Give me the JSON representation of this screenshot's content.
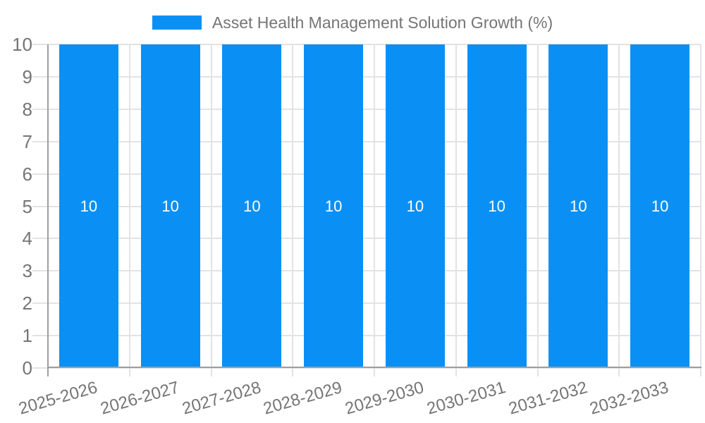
{
  "chart_data": {
    "type": "bar",
    "title": "",
    "legend": {
      "label": "Asset Health Management Solution Growth (%)",
      "position": "top"
    },
    "categories": [
      "2025-2026",
      "2026-2027",
      "2027-2028",
      "2028-2029",
      "2029-2030",
      "2030-2031",
      "2031-2032",
      "2032-2033"
    ],
    "series": [
      {
        "name": "Asset Health Management Solution Growth (%)",
        "values": [
          10,
          10,
          10,
          10,
          10,
          10,
          10,
          10
        ],
        "color": "#0a90f5"
      }
    ],
    "value_labels": [
      "10",
      "10",
      "10",
      "10",
      "10",
      "10",
      "10",
      "10"
    ],
    "xlabel": "",
    "ylabel": "",
    "ylim": [
      0,
      10
    ],
    "yticks": [
      0,
      1,
      2,
      3,
      4,
      5,
      6,
      7,
      8,
      9,
      10
    ],
    "grid": true,
    "x_label_rotation_deg": -16
  },
  "colors": {
    "bar": "#0a90f5",
    "grid_line": "#e3e3e3",
    "axis_line": "#9e9e9e",
    "tick_label": "#757575",
    "legend_text": "#757575",
    "value_label": "#ffffff",
    "background": "#ffffff"
  }
}
